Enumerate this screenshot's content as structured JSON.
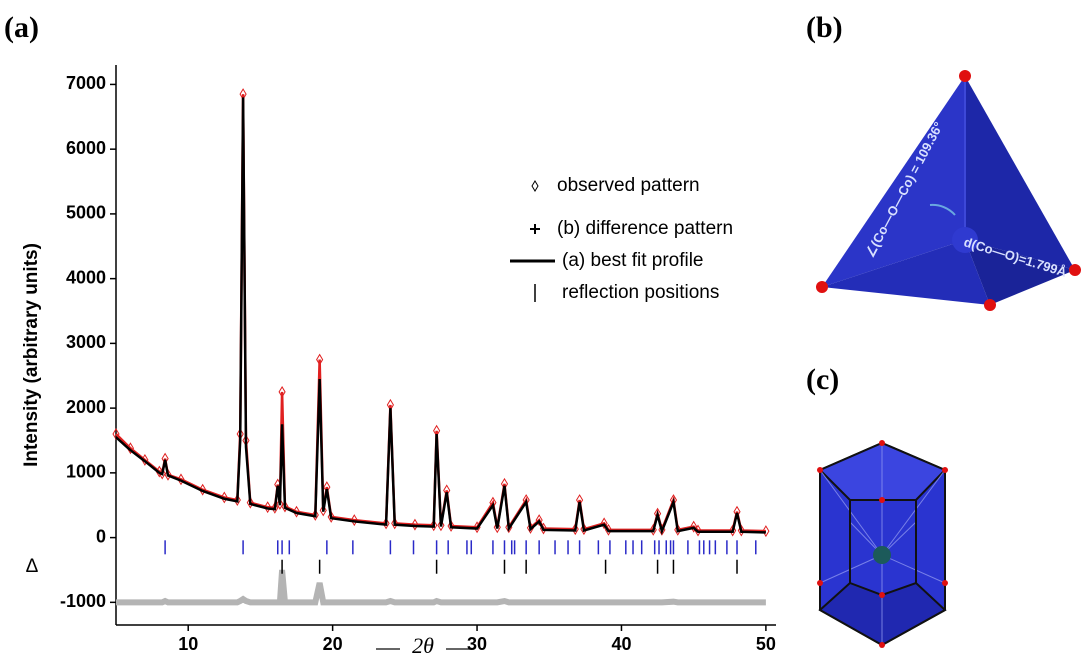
{
  "panel_labels": [
    "(a)",
    "(b)",
    "(c)"
  ],
  "annotations": {
    "angle": "∠(Co—O—Co) = 109.36°",
    "distance": "d(Co—O)=1.799Å"
  },
  "chart_data": {
    "type": "line",
    "ylabel": "Intensity (arbitrary units)",
    "xlabel": "2θ",
    "delta_label": "Δ",
    "xlim": [
      5,
      50.7
    ],
    "ylim": [
      -1350,
      7300
    ],
    "xticks": [
      10,
      20,
      30,
      40,
      50
    ],
    "yticks": [
      -1000,
      0,
      1000,
      2000,
      3000,
      4000,
      5000,
      6000,
      7000
    ],
    "x": [
      5.0,
      6.0,
      7.0,
      8.0,
      8.2,
      8.4,
      8.6,
      9.5,
      11.0,
      12.5,
      13.4,
      13.6,
      13.8,
      14.0,
      14.3,
      15.5,
      16.0,
      16.2,
      16.35,
      16.5,
      16.7,
      17.5,
      18.8,
      19.1,
      19.35,
      19.6,
      19.9,
      21.5,
      23.7,
      24.0,
      24.3,
      25.7,
      27.0,
      27.2,
      27.5,
      27.9,
      28.2,
      30.0,
      31.1,
      31.4,
      31.9,
      32.2,
      33.4,
      33.7,
      34.3,
      34.6,
      36.8,
      37.1,
      37.4,
      38.8,
      39.1,
      42.2,
      42.5,
      42.8,
      43.6,
      43.9,
      45.0,
      45.3,
      47.7,
      48.0,
      48.3,
      50.0
    ],
    "series": [
      {
        "name": "observed pattern",
        "color": "#e02020",
        "marker": "diamond",
        "values": [
          1600,
          1380,
          1200,
          1020,
          990,
          1220,
          970,
          900,
          740,
          620,
          580,
          1600,
          6850,
          1500,
          540,
          470,
          460,
          820,
          520,
          2250,
          480,
          400,
          350,
          2750,
          420,
          780,
          320,
          270,
          220,
          2050,
          220,
          200,
          190,
          1650,
          190,
          730,
          180,
          160,
          540,
          160,
          830,
          160,
          580,
          150,
          270,
          140,
          130,
          580,
          130,
          220,
          120,
          120,
          370,
          120,
          580,
          120,
          170,
          110,
          110,
          400,
          110,
          100
        ]
      },
      {
        "name": "(b) difference pattern",
        "color": "#b4b4b4",
        "marker": "plus",
        "values": [
          -1000,
          -1000,
          -1000,
          -1000,
          -1000,
          -980,
          -1000,
          -1000,
          -1000,
          -1000,
          -1000,
          -980,
          -950,
          -980,
          -1000,
          -1000,
          -1000,
          -1000,
          -1000,
          -500,
          -1000,
          -1000,
          -1000,
          -700,
          -1000,
          -1000,
          -1000,
          -1000,
          -1000,
          -980,
          -1000,
          -1000,
          -1000,
          -980,
          -1000,
          -1000,
          -1000,
          -1000,
          -1000,
          -1000,
          -980,
          -1000,
          -1000,
          -1000,
          -1000,
          -1000,
          -1000,
          -1000,
          -1000,
          -1000,
          -1000,
          -1000,
          -1000,
          -1000,
          -990,
          -1000,
          -1000,
          -1000,
          -1000,
          -1000,
          -1000,
          -1000
        ]
      },
      {
        "name": "(a) best fit profile",
        "color": "#000000",
        "marker": "line",
        "values": [
          1550,
          1350,
          1180,
          1000,
          980,
          1200,
          960,
          880,
          720,
          600,
          560,
          1500,
          6800,
          1400,
          520,
          450,
          440,
          800,
          500,
          1750,
          460,
          380,
          330,
          2450,
          400,
          750,
          300,
          250,
          200,
          2000,
          200,
          180,
          170,
          1600,
          170,
          700,
          160,
          140,
          500,
          140,
          800,
          140,
          550,
          130,
          250,
          120,
          110,
          550,
          110,
          200,
          100,
          100,
          350,
          100,
          550,
          100,
          150,
          90,
          90,
          380,
          90,
          80
        ]
      }
    ],
    "reflections": {
      "name": "reflection positions",
      "sets": [
        {
          "color": "#2a2ac8",
          "y": -150,
          "positions": [
            8.4,
            13.8,
            16.2,
            16.5,
            17.0,
            19.6,
            21.4,
            24.0,
            25.6,
            27.2,
            28.0,
            29.3,
            29.6,
            31.1,
            31.9,
            32.4,
            32.6,
            33.4,
            34.3,
            35.4,
            36.3,
            37.1,
            38.4,
            39.2,
            40.3,
            40.8,
            41.4,
            42.3,
            42.6,
            43.1,
            43.4,
            43.6,
            44.6,
            45.4,
            45.7,
            46.1,
            46.5,
            47.3,
            48.0,
            49.3
          ]
        },
        {
          "color": "#000000",
          "y": -450,
          "positions": [
            16.5,
            19.1,
            27.2,
            31.9,
            33.4,
            38.9,
            42.5,
            43.6,
            48.0
          ]
        }
      ]
    }
  }
}
